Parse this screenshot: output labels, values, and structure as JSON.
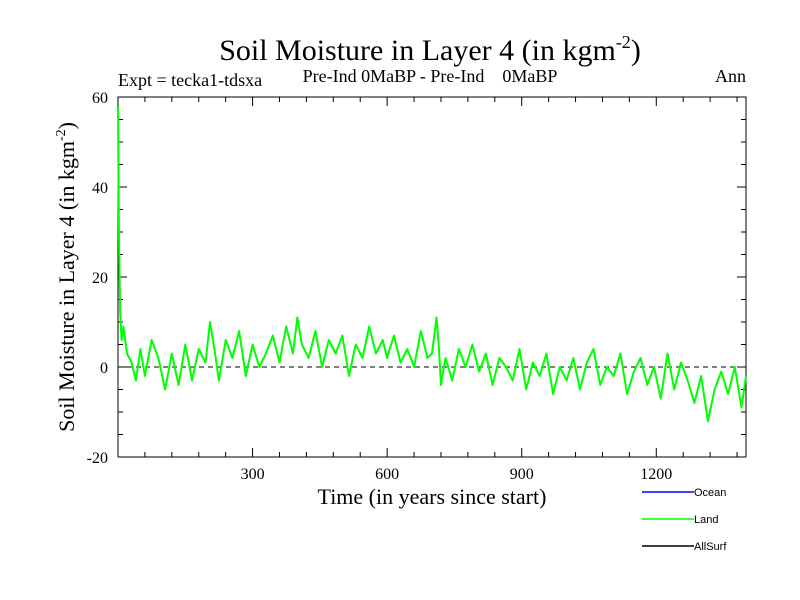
{
  "chart_data": {
    "type": "line",
    "title": "Soil Moisture in Layer 4 (in kgm",
    "title_superscript": "-2",
    "title_close": ")",
    "subtitle_left": "Expt = tecka1-tdsxa",
    "subtitle_center": "Pre-Ind 0MaBP - Pre-Ind    0MaBP",
    "subtitle_right": "Ann",
    "xlabel": "Time (in years since start)",
    "ylabel": "Soil Moisture in Layer 4 (in kgm",
    "ylabel_superscript": "-2",
    "ylabel_close": ")",
    "xlim": [
      0,
      1400
    ],
    "ylim": [
      -20,
      60
    ],
    "x_ticks": [
      300,
      600,
      900,
      1200
    ],
    "x_tick_labels": [
      "300",
      "600",
      "900",
      "1200"
    ],
    "y_ticks": [
      -20,
      0,
      20,
      40,
      60
    ],
    "y_tick_labels": [
      "-20",
      "0",
      "20",
      "40",
      "60"
    ],
    "zero_line": 0,
    "series": [
      {
        "name": "Ocean",
        "color": "#0000ff",
        "x": [],
        "y": []
      },
      {
        "name": "Land",
        "color": "#00ff00",
        "x": [
          0,
          2,
          5,
          8,
          12,
          20,
          30,
          40,
          50,
          60,
          75,
          90,
          105,
          120,
          135,
          150,
          165,
          180,
          195,
          205,
          215,
          225,
          240,
          255,
          270,
          285,
          300,
          315,
          330,
          345,
          360,
          375,
          390,
          400,
          410,
          425,
          440,
          455,
          470,
          485,
          500,
          515,
          530,
          545,
          560,
          575,
          590,
          600,
          615,
          630,
          645,
          660,
          675,
          690,
          700,
          710,
          715,
          720,
          730,
          745,
          760,
          775,
          790,
          805,
          820,
          835,
          850,
          865,
          880,
          895,
          910,
          925,
          940,
          955,
          970,
          985,
          1000,
          1015,
          1030,
          1045,
          1060,
          1075,
          1090,
          1105,
          1120,
          1135,
          1150,
          1165,
          1180,
          1195,
          1210,
          1225,
          1240,
          1255,
          1270,
          1285,
          1300,
          1315,
          1330,
          1345,
          1360,
          1375,
          1390,
          1400
        ],
        "y": [
          58,
          30,
          12,
          6,
          9,
          3,
          1,
          -3,
          4,
          -2,
          6,
          2,
          -5,
          3,
          -4,
          5,
          -3,
          4,
          1,
          10,
          4,
          -3,
          6,
          2,
          8,
          -2,
          5,
          0,
          3,
          7,
          1,
          9,
          3,
          11,
          5,
          2,
          8,
          0,
          6,
          3,
          7,
          -2,
          5,
          2,
          9,
          3,
          6,
          2,
          7,
          1,
          4,
          0,
          8,
          2,
          3,
          11,
          5,
          -4,
          2,
          -3,
          4,
          0,
          5,
          -1,
          3,
          -4,
          2,
          0,
          -3,
          4,
          -5,
          1,
          -2,
          3,
          -6,
          0,
          -3,
          2,
          -5,
          1,
          4,
          -4,
          0,
          -2,
          3,
          -6,
          -1,
          2,
          -4,
          0,
          -7,
          3,
          -5,
          1,
          -3,
          -8,
          -2,
          -12,
          -5,
          -1,
          -6,
          0,
          -9,
          -2
        ]
      },
      {
        "name": "AllSurf",
        "color": "#000000",
        "x": [],
        "y": []
      }
    ],
    "legend_position": "bottom-right"
  }
}
